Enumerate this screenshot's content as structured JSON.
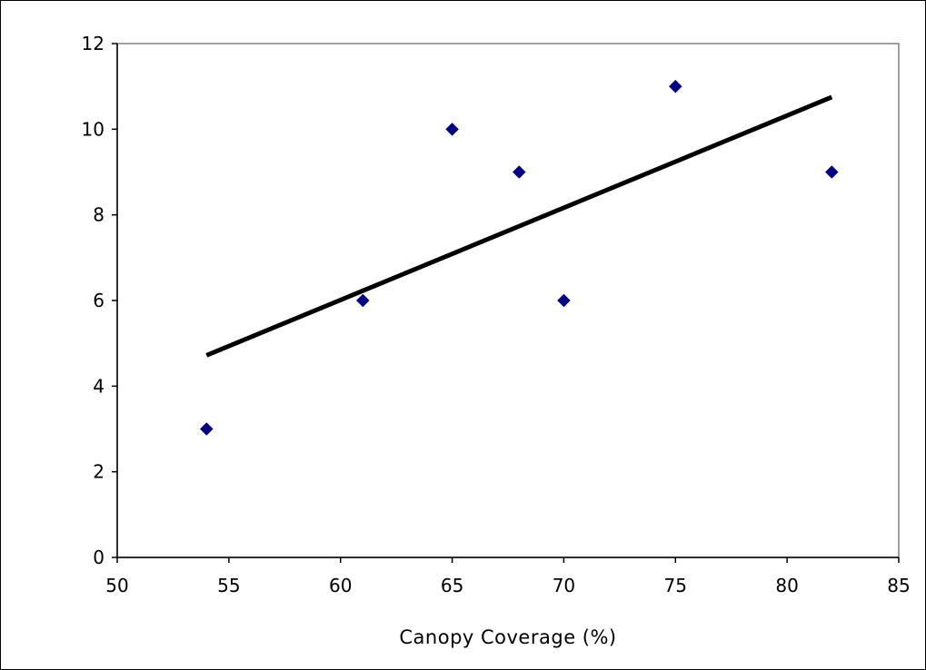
{
  "colors": {
    "marker": "#000080",
    "trendline": "#000000",
    "plot_border": "#808080",
    "axis": "#000000"
  },
  "chart_data": {
    "type": "scatter",
    "title": "",
    "xlabel": "Canopy Coverage (%)",
    "ylabel": "",
    "xlim": [
      50,
      85
    ],
    "ylim": [
      0,
      12
    ],
    "x_ticks": [
      50,
      55,
      60,
      65,
      70,
      75,
      80,
      85
    ],
    "y_ticks": [
      0,
      2,
      4,
      6,
      8,
      10,
      12
    ],
    "grid": false,
    "legend": "none",
    "marker_shape": "diamond",
    "series": [
      {
        "x": [
          54,
          61,
          65,
          68,
          70,
          75,
          82
        ],
        "y": [
          3,
          6,
          10,
          9,
          6,
          11,
          9
        ]
      }
    ],
    "trendline": {
      "type": "linear",
      "x": [
        54,
        82
      ],
      "y": [
        4.72,
        10.75
      ]
    }
  }
}
